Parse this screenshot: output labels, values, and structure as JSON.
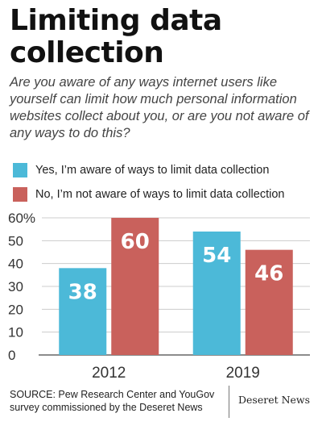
{
  "title": "Limiting data collection",
  "question": "Are you aware of any ways internet users like yourself can limit how much personal information websites collect about you, or are you not aware of any ways to do this?",
  "colors": {
    "yes": "#4cb9d8",
    "no": "#c9615c",
    "gridline": "#cccccc",
    "axis": "#666666"
  },
  "chart_data": {
    "type": "bar",
    "categories": [
      "2012",
      "2019"
    ],
    "series": [
      {
        "name": "Yes, I’m aware of ways to limit data collection",
        "values": [
          38,
          54
        ]
      },
      {
        "name": "No, I’m not aware of ways to limit data collection",
        "values": [
          60,
          46
        ]
      }
    ],
    "data_labels": [
      [
        "38",
        "54"
      ],
      [
        "60",
        "46"
      ]
    ],
    "yticks": [
      "0",
      "10",
      "20",
      "30",
      "40",
      "50",
      "60%"
    ],
    "ylim": [
      0,
      60
    ],
    "legend": "top",
    "grid": true
  },
  "footer": {
    "source": "SOURCE: Pew Research Center and YouGov survey commissioned by the Deseret News",
    "brand": "Deseret News"
  }
}
